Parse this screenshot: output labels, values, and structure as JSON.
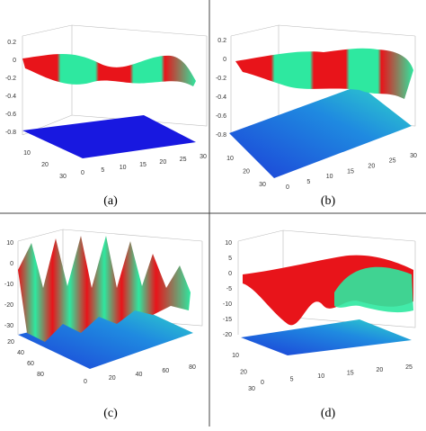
{
  "panels": [
    {
      "caption": "(a)",
      "zticks": [
        "0.2",
        "0",
        "-0.2",
        "-0.4",
        "-0.6",
        "-0.8"
      ],
      "xticks": [
        "0",
        "5",
        "10",
        "15",
        "20",
        "25",
        "30"
      ],
      "yticks": [
        "10",
        "20",
        "30"
      ]
    },
    {
      "caption": "(b)",
      "zticks": [
        "0.2",
        "0",
        "-0.2",
        "-0.4",
        "-0.6",
        "-0.8"
      ],
      "xticks": [
        "0",
        "5",
        "10",
        "15",
        "20",
        "25",
        "30"
      ],
      "yticks": [
        "10",
        "20",
        "30"
      ]
    },
    {
      "caption": "(c)",
      "zticks": [
        "10",
        "0",
        "-10",
        "-20",
        "-30"
      ],
      "xticks": [
        "0",
        "20",
        "40",
        "60",
        "80"
      ],
      "yticks": [
        "20",
        "40",
        "60",
        "80"
      ]
    },
    {
      "caption": "(d)",
      "zticks": [
        "10",
        "5",
        "0",
        "-5",
        "-10",
        "-15",
        "-20"
      ],
      "xticks": [
        "0",
        "5",
        "10",
        "15",
        "20",
        "25"
      ],
      "yticks": [
        "10",
        "20",
        "30"
      ]
    }
  ]
}
